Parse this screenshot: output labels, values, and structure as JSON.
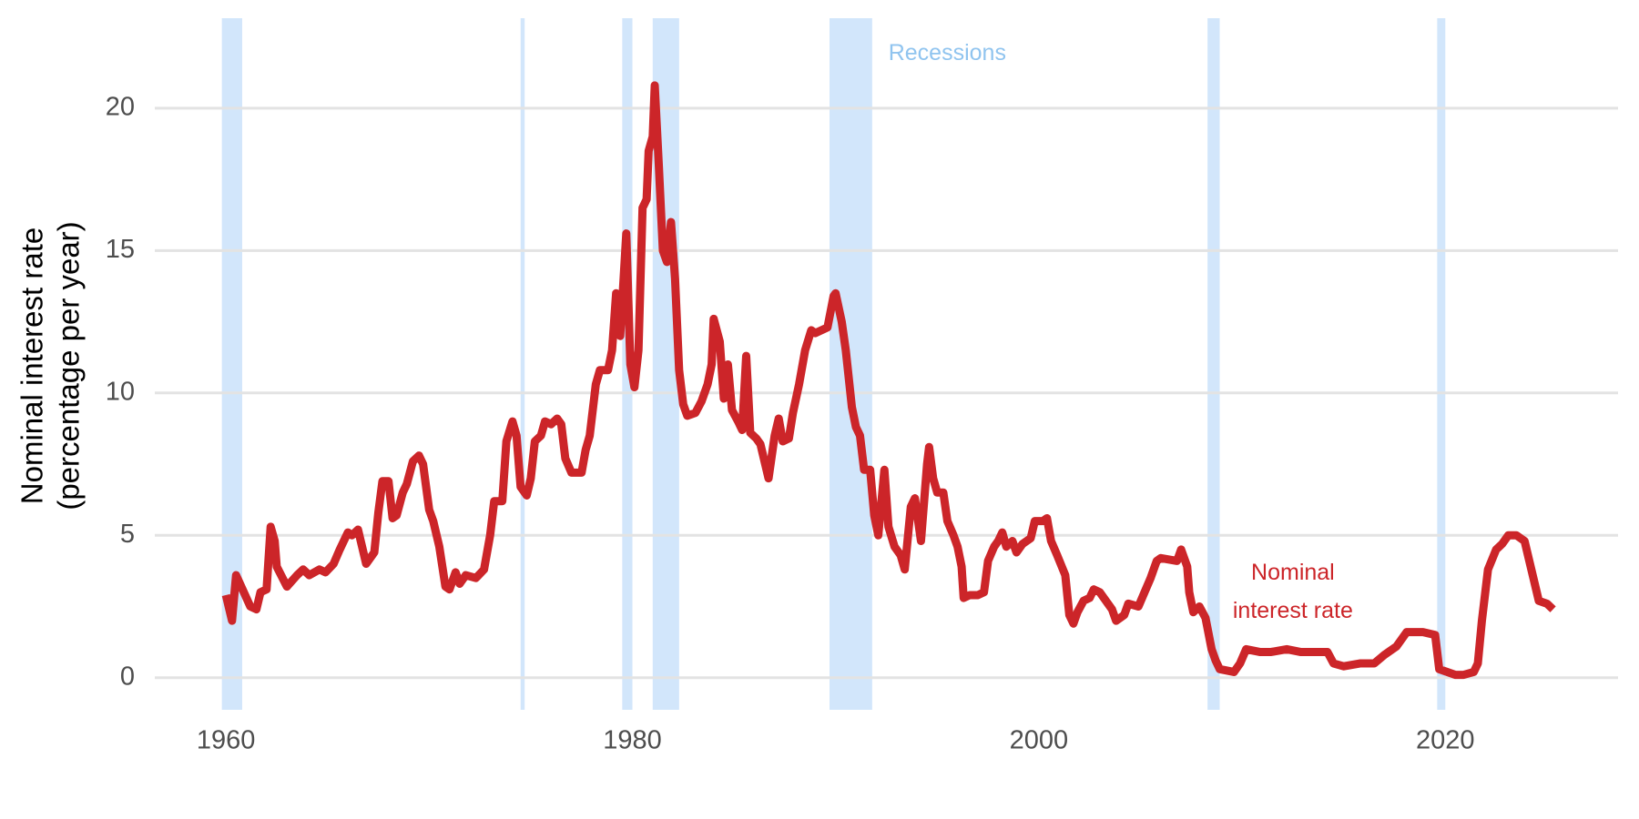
{
  "chart_data": {
    "type": "line",
    "ylabel": [
      "Nominal interest rate",
      "(percentage per year)"
    ],
    "xlim": [
      1956.5,
      2028.5
    ],
    "ylim": [
      -1,
      23
    ],
    "xticks": [
      1960,
      1980,
      2000,
      2020
    ],
    "yticks": [
      0,
      5,
      10,
      15,
      20
    ],
    "grid": true,
    "recessions_label": "Recessions",
    "recessions_color": "#d2e6fb",
    "recessions_label_color": "#90c4ef",
    "recessions": [
      {
        "start": 1959.8,
        "end": 1960.8
      },
      {
        "start": 1974.5,
        "end": 1974.7
      },
      {
        "start": 1979.5,
        "end": 1980.0
      },
      {
        "start": 1981.0,
        "end": 1982.3
      },
      {
        "start": 1989.7,
        "end": 1991.8
      },
      {
        "start": 2008.3,
        "end": 2008.9
      },
      {
        "start": 2019.6,
        "end": 2020.0
      }
    ],
    "x": [
      1960.0,
      1960.3,
      1960.5,
      1961.2,
      1961.5,
      1961.7,
      1962.0,
      1962.2,
      1962.4,
      1962.5,
      1963.0,
      1963.5,
      1963.8,
      1964.1,
      1964.6,
      1964.9,
      1965.3,
      1965.6,
      1966.0,
      1966.2,
      1966.5,
      1966.9,
      1967.3,
      1967.5,
      1967.7,
      1968.0,
      1968.2,
      1968.4,
      1968.7,
      1968.9,
      1969.2,
      1969.5,
      1969.7,
      1970.0,
      1970.2,
      1970.5,
      1970.8,
      1971.0,
      1971.3,
      1971.5,
      1971.8,
      1972.3,
      1972.7,
      1973.0,
      1973.2,
      1973.6,
      1973.8,
      1974.1,
      1974.3,
      1974.5,
      1974.8,
      1975.0,
      1975.2,
      1975.5,
      1975.7,
      1976.0,
      1976.3,
      1976.5,
      1976.7,
      1977.0,
      1977.5,
      1977.7,
      1977.9,
      1978.2,
      1978.4,
      1978.8,
      1979.0,
      1979.2,
      1979.4,
      1979.7,
      1979.9,
      1980.1,
      1980.3,
      1980.5,
      1980.7,
      1980.8,
      1981.0,
      1981.1,
      1981.3,
      1981.5,
      1981.7,
      1981.9,
      1982.1,
      1982.3,
      1982.5,
      1982.7,
      1983.1,
      1983.4,
      1983.7,
      1983.9,
      1984.0,
      1984.3,
      1984.5,
      1984.7,
      1984.9,
      1985.2,
      1985.4,
      1985.6,
      1985.8,
      1986.1,
      1986.3,
      1986.7,
      1987.0,
      1987.2,
      1987.4,
      1987.7,
      1987.9,
      1988.2,
      1988.5,
      1988.8,
      1989.0,
      1989.3,
      1989.6,
      1989.9,
      1990.0,
      1990.3,
      1990.5,
      1990.8,
      1991.0,
      1991.2,
      1991.4,
      1991.7,
      1991.9,
      1992.1,
      1992.4,
      1992.6,
      1992.9,
      1993.2,
      1993.4,
      1993.7,
      1993.9,
      1994.2,
      1994.5,
      1994.6,
      1994.8,
      1995.0,
      1995.3,
      1995.5,
      1995.8,
      1996.0,
      1996.2,
      1996.3,
      1996.6,
      1997.0,
      1997.3,
      1997.5,
      1997.8,
      1998.0,
      1998.2,
      1998.4,
      1998.7,
      1998.9,
      1999.2,
      1999.6,
      1999.8,
      2000.2,
      2000.4,
      2000.6,
      2000.9,
      2001.3,
      2001.5,
      2001.7,
      2001.9,
      2002.2,
      2002.5,
      2002.7,
      2003.0,
      2003.3,
      2003.6,
      2003.8,
      2004.2,
      2004.4,
      2004.9,
      2005.2,
      2005.5,
      2005.8,
      2006.0,
      2006.8,
      2007.0,
      2007.3,
      2007.4,
      2007.6,
      2007.9,
      2008.2,
      2008.5,
      2008.7,
      2008.9,
      2009.6,
      2009.9,
      2010.2,
      2010.9,
      2011.4,
      2012.2,
      2012.9,
      2013.7,
      2014.2,
      2014.5,
      2015.0,
      2015.8,
      2016.5,
      2017.0,
      2017.6,
      2018.1,
      2018.9,
      2019.5,
      2019.7,
      2020.5,
      2020.9,
      2021.4,
      2021.6,
      2021.8,
      2022.1,
      2022.5,
      2022.8,
      2023.1,
      2023.5,
      2023.9,
      2024.1,
      2024.4,
      2024.6,
      2025.0,
      2025.3
    ],
    "series": [
      {
        "name": "Nominal interest rate",
        "line_label": [
          "Nominal",
          "interest rate"
        ],
        "color": "#cc2529",
        "values": [
          2.9,
          2.0,
          3.6,
          2.5,
          2.4,
          3.0,
          3.1,
          5.3,
          4.8,
          3.9,
          3.2,
          3.6,
          3.8,
          3.6,
          3.8,
          3.7,
          4.0,
          4.5,
          5.1,
          5.0,
          5.2,
          4.0,
          4.4,
          5.8,
          6.9,
          6.9,
          5.6,
          5.7,
          6.5,
          6.8,
          7.6,
          7.8,
          7.5,
          5.9,
          5.5,
          4.6,
          3.2,
          3.1,
          3.7,
          3.3,
          3.6,
          3.5,
          3.8,
          5.0,
          6.2,
          6.2,
          8.3,
          9.0,
          8.5,
          6.7,
          6.4,
          7.0,
          8.3,
          8.5,
          9.0,
          8.9,
          9.1,
          8.9,
          7.7,
          7.2,
          7.2,
          8.0,
          8.5,
          10.3,
          10.8,
          10.8,
          11.5,
          13.5,
          12.0,
          15.6,
          11.0,
          10.2,
          11.5,
          16.5,
          16.8,
          18.5,
          19.0,
          20.8,
          18.0,
          15.0,
          14.6,
          16.0,
          14.0,
          10.8,
          9.6,
          9.2,
          9.3,
          9.7,
          10.3,
          11.0,
          12.6,
          11.8,
          9.8,
          11.0,
          9.4,
          9.0,
          8.7,
          11.3,
          8.6,
          8.4,
          8.2,
          7.0,
          8.5,
          9.1,
          8.3,
          8.4,
          9.3,
          10.3,
          11.5,
          12.2,
          12.1,
          12.2,
          12.3,
          13.4,
          13.5,
          12.5,
          11.5,
          9.5,
          8.8,
          8.5,
          7.3,
          7.3,
          5.7,
          5.0,
          7.3,
          5.3,
          4.6,
          4.3,
          3.8,
          6.0,
          6.3,
          4.8,
          7.5,
          8.1,
          7.0,
          6.5,
          6.5,
          5.5,
          5.0,
          4.6,
          3.9,
          2.8,
          2.9,
          2.9,
          3.0,
          4.1,
          4.6,
          4.8,
          5.1,
          4.6,
          4.8,
          4.4,
          4.7,
          4.9,
          5.5,
          5.5,
          5.6,
          4.8,
          4.3,
          3.6,
          2.2,
          1.9,
          2.3,
          2.7,
          2.8,
          3.1,
          3.0,
          2.7,
          2.4,
          2.0,
          2.2,
          2.6,
          2.5,
          3.0,
          3.5,
          4.1,
          4.2,
          4.1,
          4.5,
          3.9,
          3.0,
          2.3,
          2.5,
          2.1,
          1.0,
          0.6,
          0.3,
          0.2,
          0.5,
          1.0,
          0.9,
          0.9,
          1.0,
          0.9,
          0.9,
          0.9,
          0.5,
          0.4,
          0.5,
          0.5,
          0.8,
          1.1,
          1.6,
          1.6,
          1.5,
          0.3,
          0.1,
          0.1,
          0.2,
          0.5,
          2.0,
          3.8,
          4.5,
          4.7,
          5.0,
          5.0,
          4.8,
          4.2,
          3.3,
          2.7,
          2.6,
          2.4
        ]
      }
    ]
  }
}
